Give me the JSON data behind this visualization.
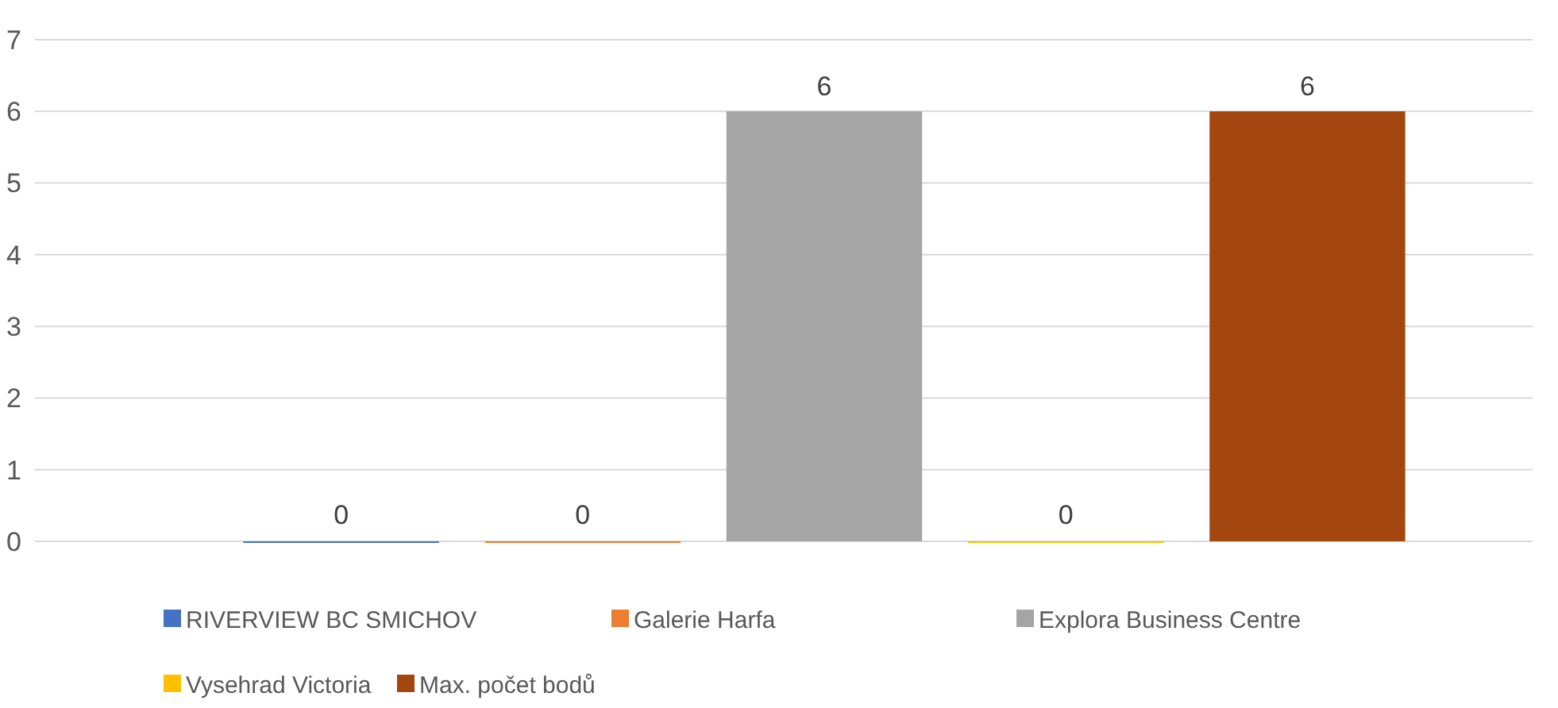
{
  "chart_data": {
    "type": "bar",
    "categories": [
      null
    ],
    "series": [
      {
        "name": "RIVERVIEW BC SMICHOV",
        "color": "#4472c4",
        "values": [
          0
        ]
      },
      {
        "name": "Galerie Harfa",
        "color": "#ed7d31",
        "values": [
          0
        ]
      },
      {
        "name": "Explora Business Centre",
        "color": "#a5a5a5",
        "values": [
          6
        ]
      },
      {
        "name": "Vysehrad Victoria",
        "color": "#ffc000",
        "values": [
          0
        ]
      },
      {
        "name": "Max. počet bodů",
        "color": "#a3460f",
        "values": [
          6
        ]
      }
    ],
    "ylim": [
      0,
      7
    ],
    "yticks": [
      0,
      1,
      2,
      3,
      4,
      5,
      6,
      7
    ],
    "grid": "y",
    "legend": "bottom",
    "data_labels": true
  }
}
